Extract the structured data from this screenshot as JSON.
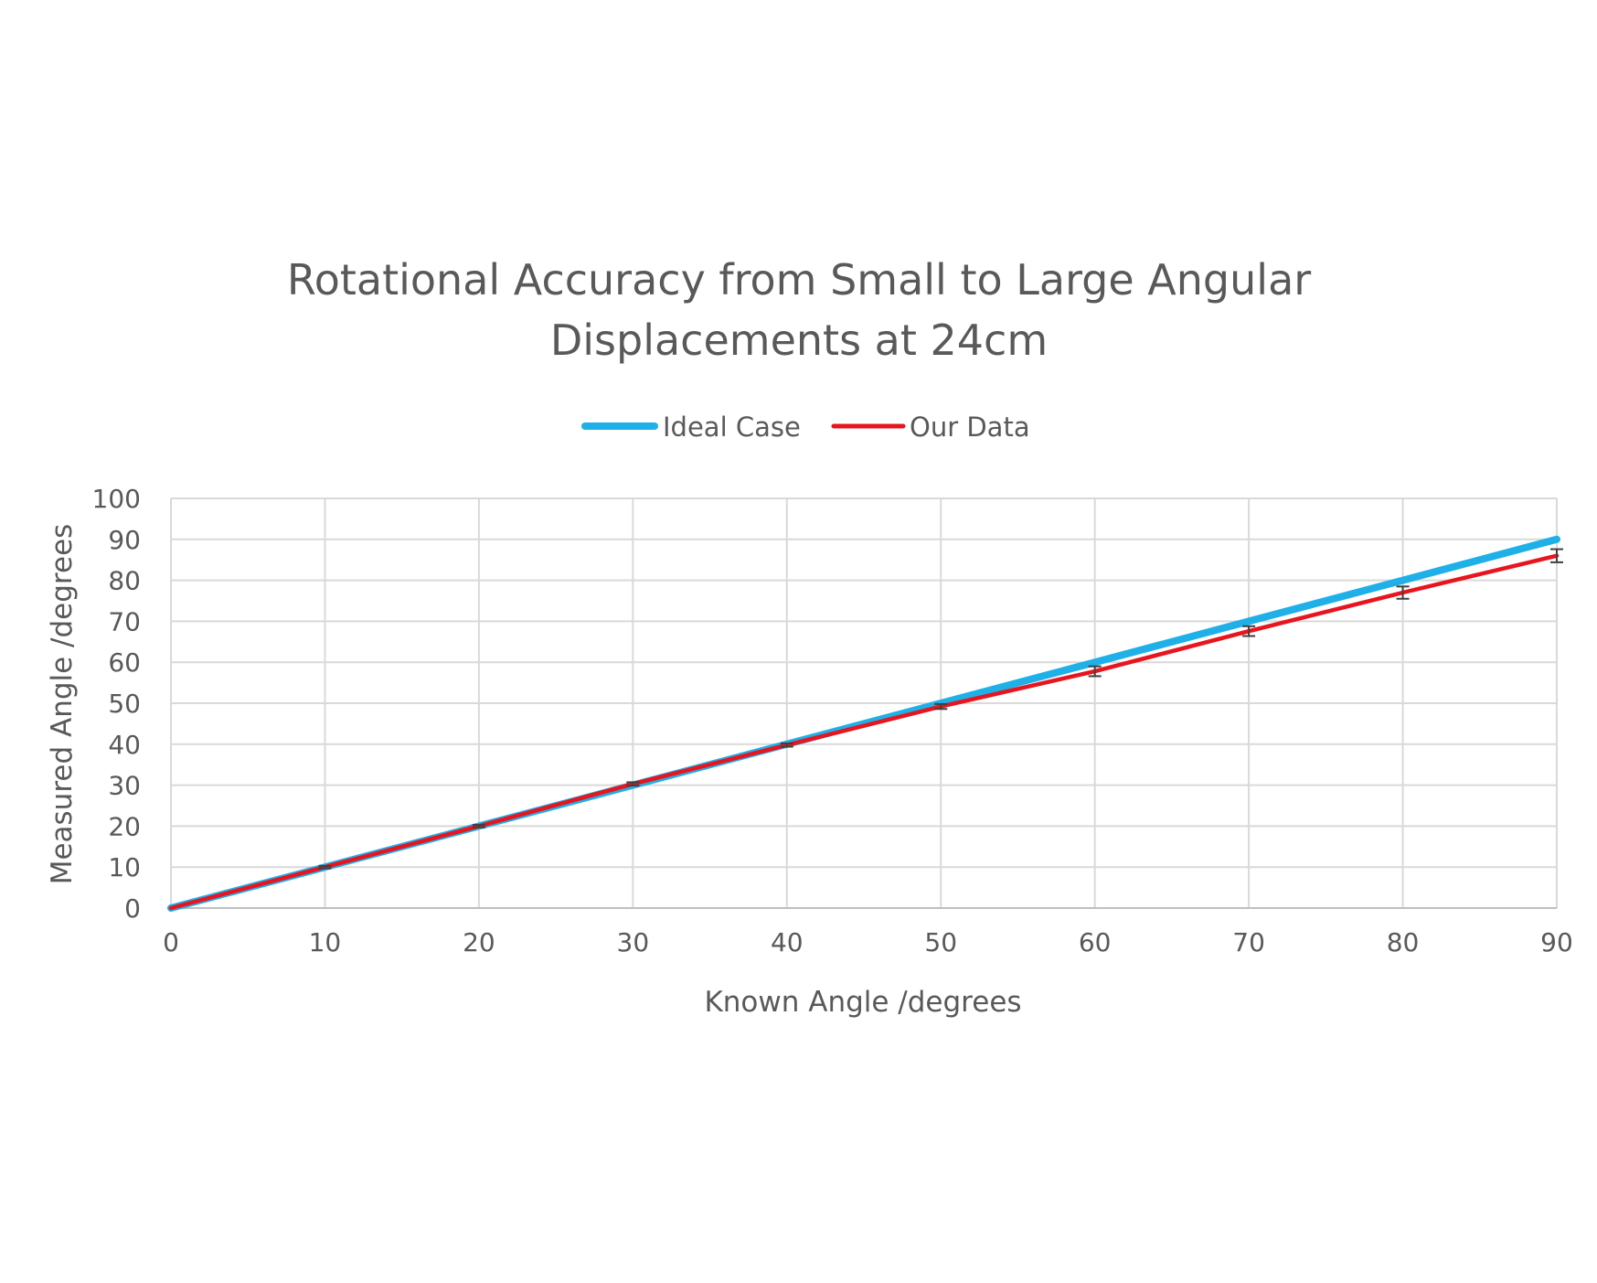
{
  "chart_data": {
    "type": "line",
    "title_lines": [
      "Rotational Accuracy from Small to Large Angular",
      "Displacements at 24cm"
    ],
    "xlabel": "Known Angle /degrees",
    "ylabel": "Measured Angle /degrees",
    "xlim": [
      0,
      90
    ],
    "ylim": [
      0,
      100
    ],
    "x_ticks": [
      0,
      10,
      20,
      30,
      40,
      50,
      60,
      70,
      80,
      90
    ],
    "y_ticks": [
      0,
      10,
      20,
      30,
      40,
      50,
      60,
      70,
      80,
      90,
      100
    ],
    "grid": true,
    "legend_position": "top-center",
    "x": [
      0,
      10,
      20,
      30,
      40,
      50,
      60,
      70,
      80,
      90
    ],
    "series": [
      {
        "name": "Ideal Case",
        "color": "#1FB0E8",
        "values": [
          0,
          10,
          20,
          30,
          40,
          50,
          60,
          70,
          80,
          90
        ]
      },
      {
        "name": "Our Data",
        "color": "#E8141E",
        "values": [
          0,
          10,
          20,
          30.3,
          39.8,
          49.2,
          57.8,
          67.6,
          77,
          86
        ],
        "error": [
          0,
          0.3,
          0.3,
          0.4,
          0.4,
          0.6,
          1.2,
          1.2,
          1.5,
          1.6
        ]
      }
    ]
  }
}
